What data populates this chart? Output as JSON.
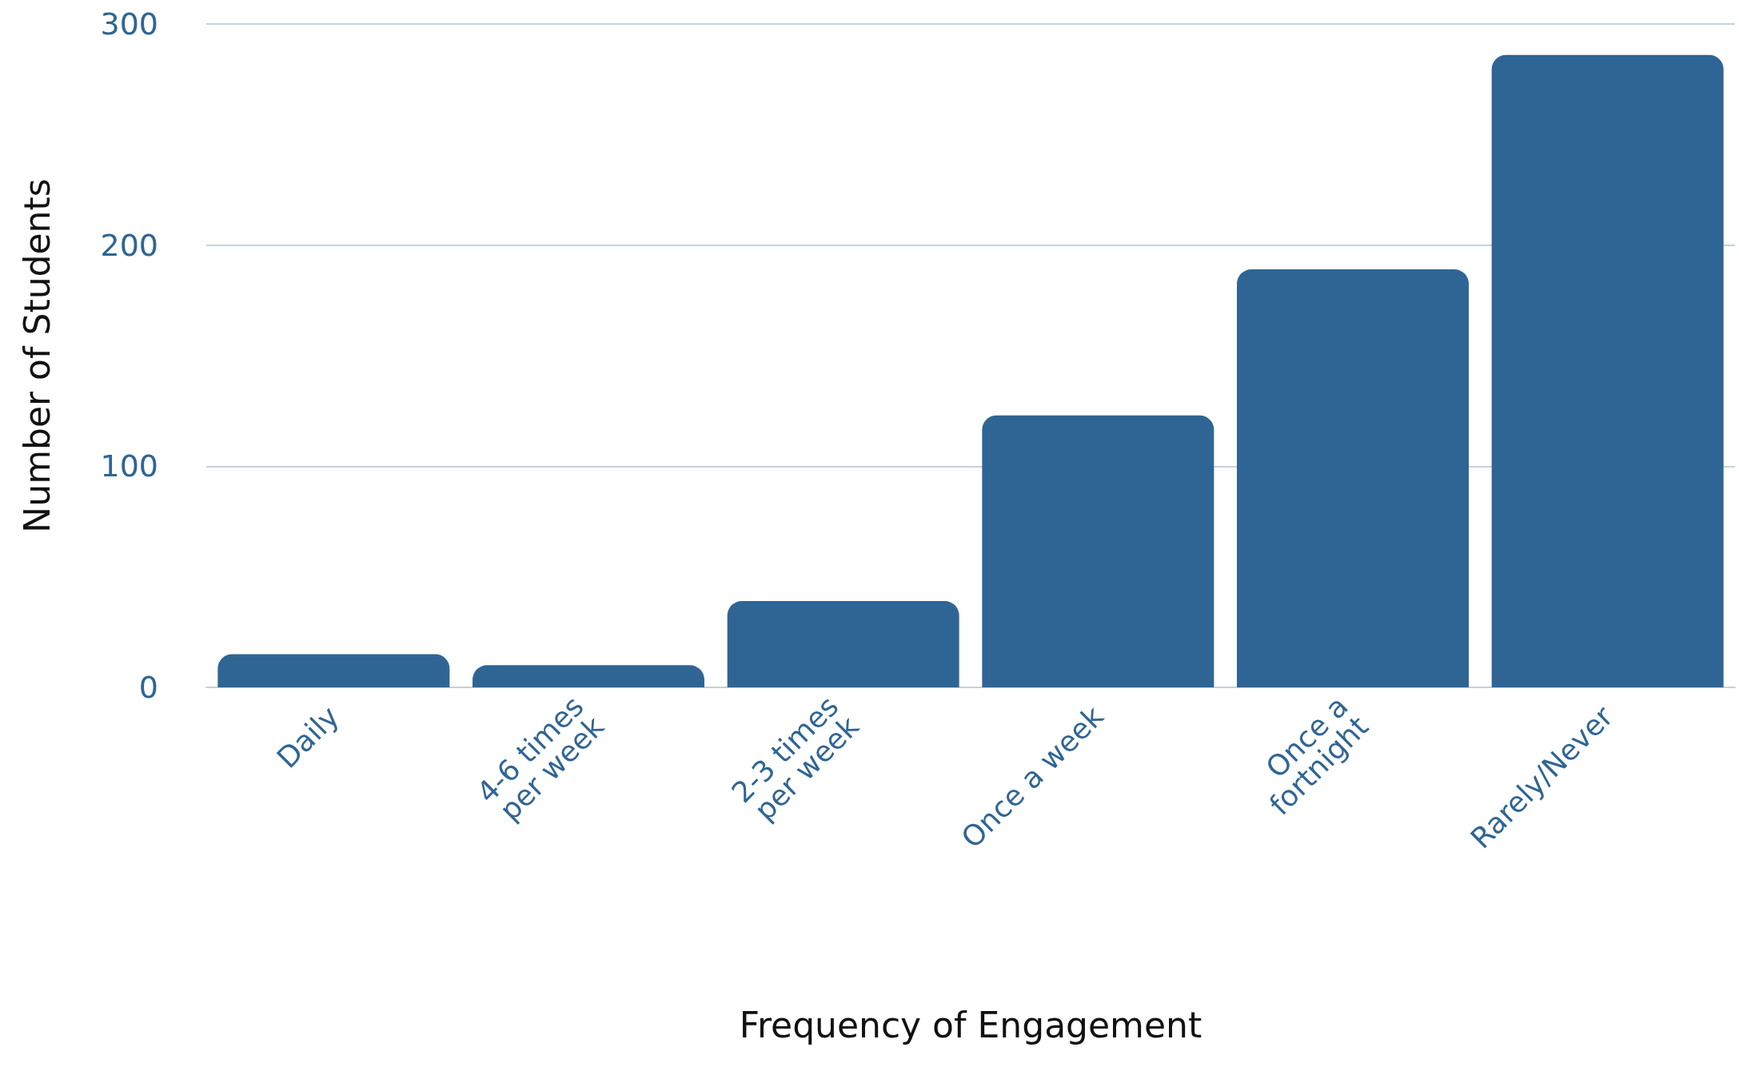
{
  "chart_data": {
    "type": "bar",
    "xlabel": "Frequency of Engagement",
    "ylabel": "Number of Students",
    "categories": [
      "Daily",
      "4-6 times per week",
      "2-3 times per week",
      "Once a week",
      "Once a fortnight",
      "Rarely/Never"
    ],
    "values": [
      15,
      10,
      39,
      123,
      189,
      286
    ],
    "color": "#2f6594",
    "ylim": [
      0,
      300
    ],
    "yticks": [
      0,
      100,
      200,
      300
    ],
    "grid": "y"
  }
}
